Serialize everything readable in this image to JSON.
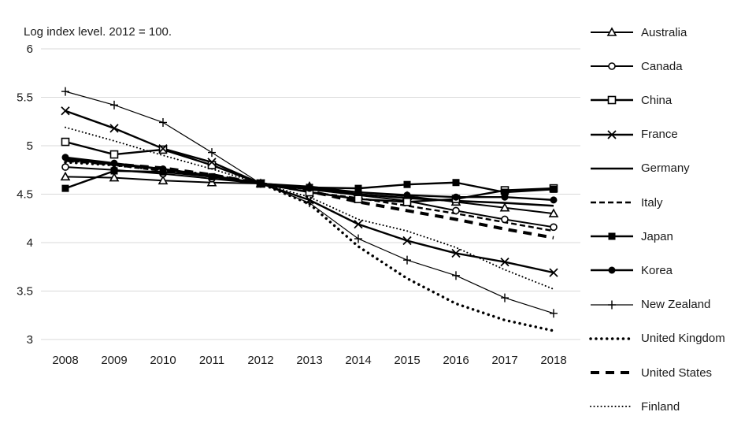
{
  "chart_data": {
    "type": "line",
    "title": "Log index level. 2012 = 100.",
    "x": [
      2008,
      2009,
      2010,
      2011,
      2012,
      2013,
      2014,
      2015,
      2016,
      2017,
      2018
    ],
    "x_labels": [
      "2008",
      "2009",
      "2010",
      "2011",
      "2012",
      "2013",
      "2014",
      "2015",
      "2016",
      "2017",
      "2018"
    ],
    "yticks": [
      6,
      5.5,
      5,
      4.5,
      4,
      3.5,
      3
    ],
    "ytick_labels": [
      "6",
      "5.5",
      "5",
      "4.5",
      "4",
      "3.5",
      "3"
    ],
    "ylim": [
      3,
      6
    ],
    "grid": "horizontal",
    "legend_position": "right",
    "series": [
      {
        "name": "Australia",
        "marker": "triangle-open",
        "line": "solid",
        "width": 2.0,
        "values": [
          4.68,
          4.67,
          4.64,
          4.62,
          4.61,
          4.58,
          4.52,
          4.48,
          4.42,
          4.36,
          4.3
        ]
      },
      {
        "name": "Canada",
        "marker": "circle-open",
        "line": "solid",
        "width": 2.0,
        "values": [
          4.78,
          4.75,
          4.71,
          4.66,
          4.61,
          4.55,
          4.49,
          4.43,
          4.33,
          4.24,
          4.16
        ]
      },
      {
        "name": "China",
        "marker": "square-open",
        "line": "solid",
        "width": 2.4,
        "values": [
          5.04,
          4.91,
          4.96,
          4.8,
          4.61,
          4.52,
          4.45,
          4.42,
          4.45,
          4.54,
          4.56
        ]
      },
      {
        "name": "France",
        "marker": "x",
        "line": "solid",
        "width": 2.4,
        "values": [
          5.36,
          5.18,
          4.97,
          4.83,
          4.61,
          4.44,
          4.19,
          4.02,
          3.89,
          3.8,
          3.69
        ]
      },
      {
        "name": "Germany",
        "marker": "none",
        "line": "solid",
        "width": 2.6,
        "values": [
          4.86,
          4.81,
          4.76,
          4.69,
          4.61,
          4.55,
          4.5,
          4.46,
          4.43,
          4.41,
          4.38
        ]
      },
      {
        "name": "Italy",
        "marker": "none",
        "line": "dash",
        "width": 2.4,
        "values": [
          4.85,
          4.8,
          4.74,
          4.68,
          4.61,
          4.52,
          4.46,
          4.38,
          4.3,
          4.21,
          4.12
        ]
      },
      {
        "name": "Japan",
        "marker": "square-filled",
        "line": "solid",
        "width": 2.4,
        "values": [
          4.56,
          4.74,
          4.73,
          4.68,
          4.61,
          4.57,
          4.56,
          4.6,
          4.62,
          4.52,
          4.55
        ]
      },
      {
        "name": "Korea",
        "marker": "circle-filled",
        "line": "solid",
        "width": 2.4,
        "values": [
          4.88,
          4.82,
          4.76,
          4.68,
          4.61,
          4.56,
          4.52,
          4.49,
          4.47,
          4.47,
          4.44
        ]
      },
      {
        "name": "New Zealand",
        "marker": "plus",
        "line": "solid",
        "width": 1.2,
        "values": [
          5.56,
          5.42,
          5.24,
          4.93,
          4.61,
          4.41,
          4.04,
          3.82,
          3.66,
          3.43,
          3.27
        ]
      },
      {
        "name": "United Kingdom",
        "marker": "none",
        "line": "dot-large",
        "width": 3.5,
        "values": [
          4.83,
          4.8,
          4.75,
          4.7,
          4.61,
          4.4,
          3.96,
          3.63,
          3.37,
          3.2,
          3.09
        ]
      },
      {
        "name": "United States",
        "marker": "none",
        "line": "longdash",
        "width": 4.0,
        "values": [
          4.85,
          4.81,
          4.77,
          4.7,
          4.61,
          4.53,
          4.42,
          4.33,
          4.24,
          4.14,
          4.05
        ]
      },
      {
        "name": "Finland",
        "marker": "none",
        "line": "dot-small",
        "width": 2.0,
        "values": [
          5.19,
          5.05,
          4.9,
          4.76,
          4.61,
          4.47,
          4.24,
          4.12,
          3.95,
          3.72,
          3.52
        ]
      }
    ]
  },
  "colors": {
    "line": "#000000",
    "grid": "#d9d9d9",
    "text": "#1a1a1a",
    "background": "#ffffff"
  }
}
